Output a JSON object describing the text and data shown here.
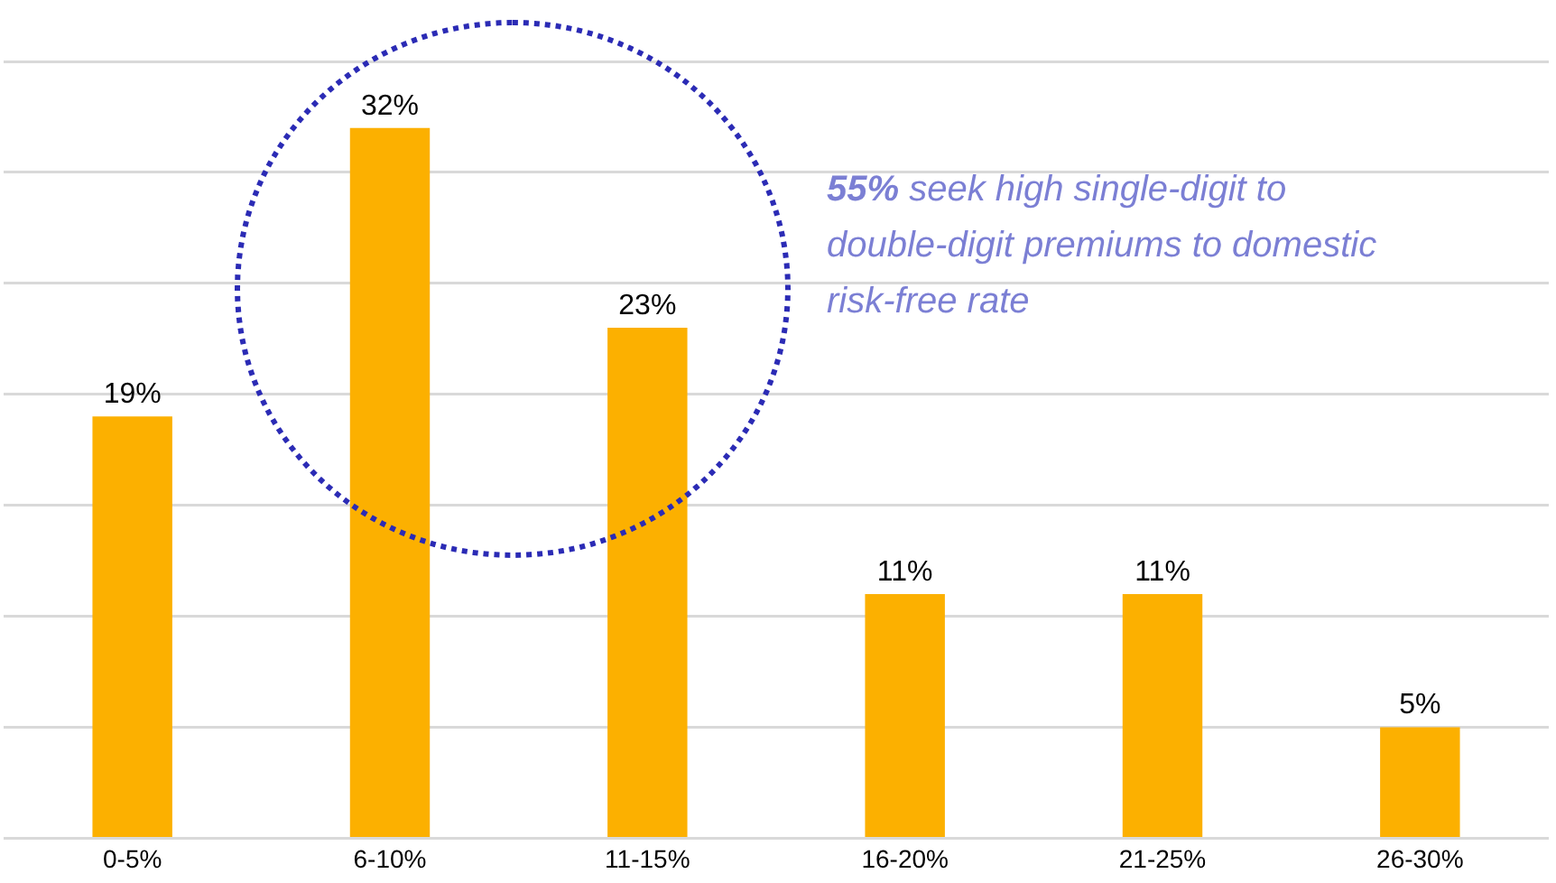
{
  "chart_data": {
    "type": "bar",
    "categories": [
      "0-5%",
      "6-10%",
      "11-15%",
      "16-20%",
      "21-25%",
      "26-30%"
    ],
    "values": [
      19,
      32,
      23,
      11,
      11,
      5
    ],
    "value_labels": [
      "19%",
      "32%",
      "23%",
      "11%",
      "11%",
      "5%"
    ],
    "color": "#fcb000",
    "tick_labels": "x",
    "grid": "y",
    "legend": false,
    "annotations": [
      "55% seek high single-digit to double-digit premiums to domestic risk-free rate"
    ]
  }
}
